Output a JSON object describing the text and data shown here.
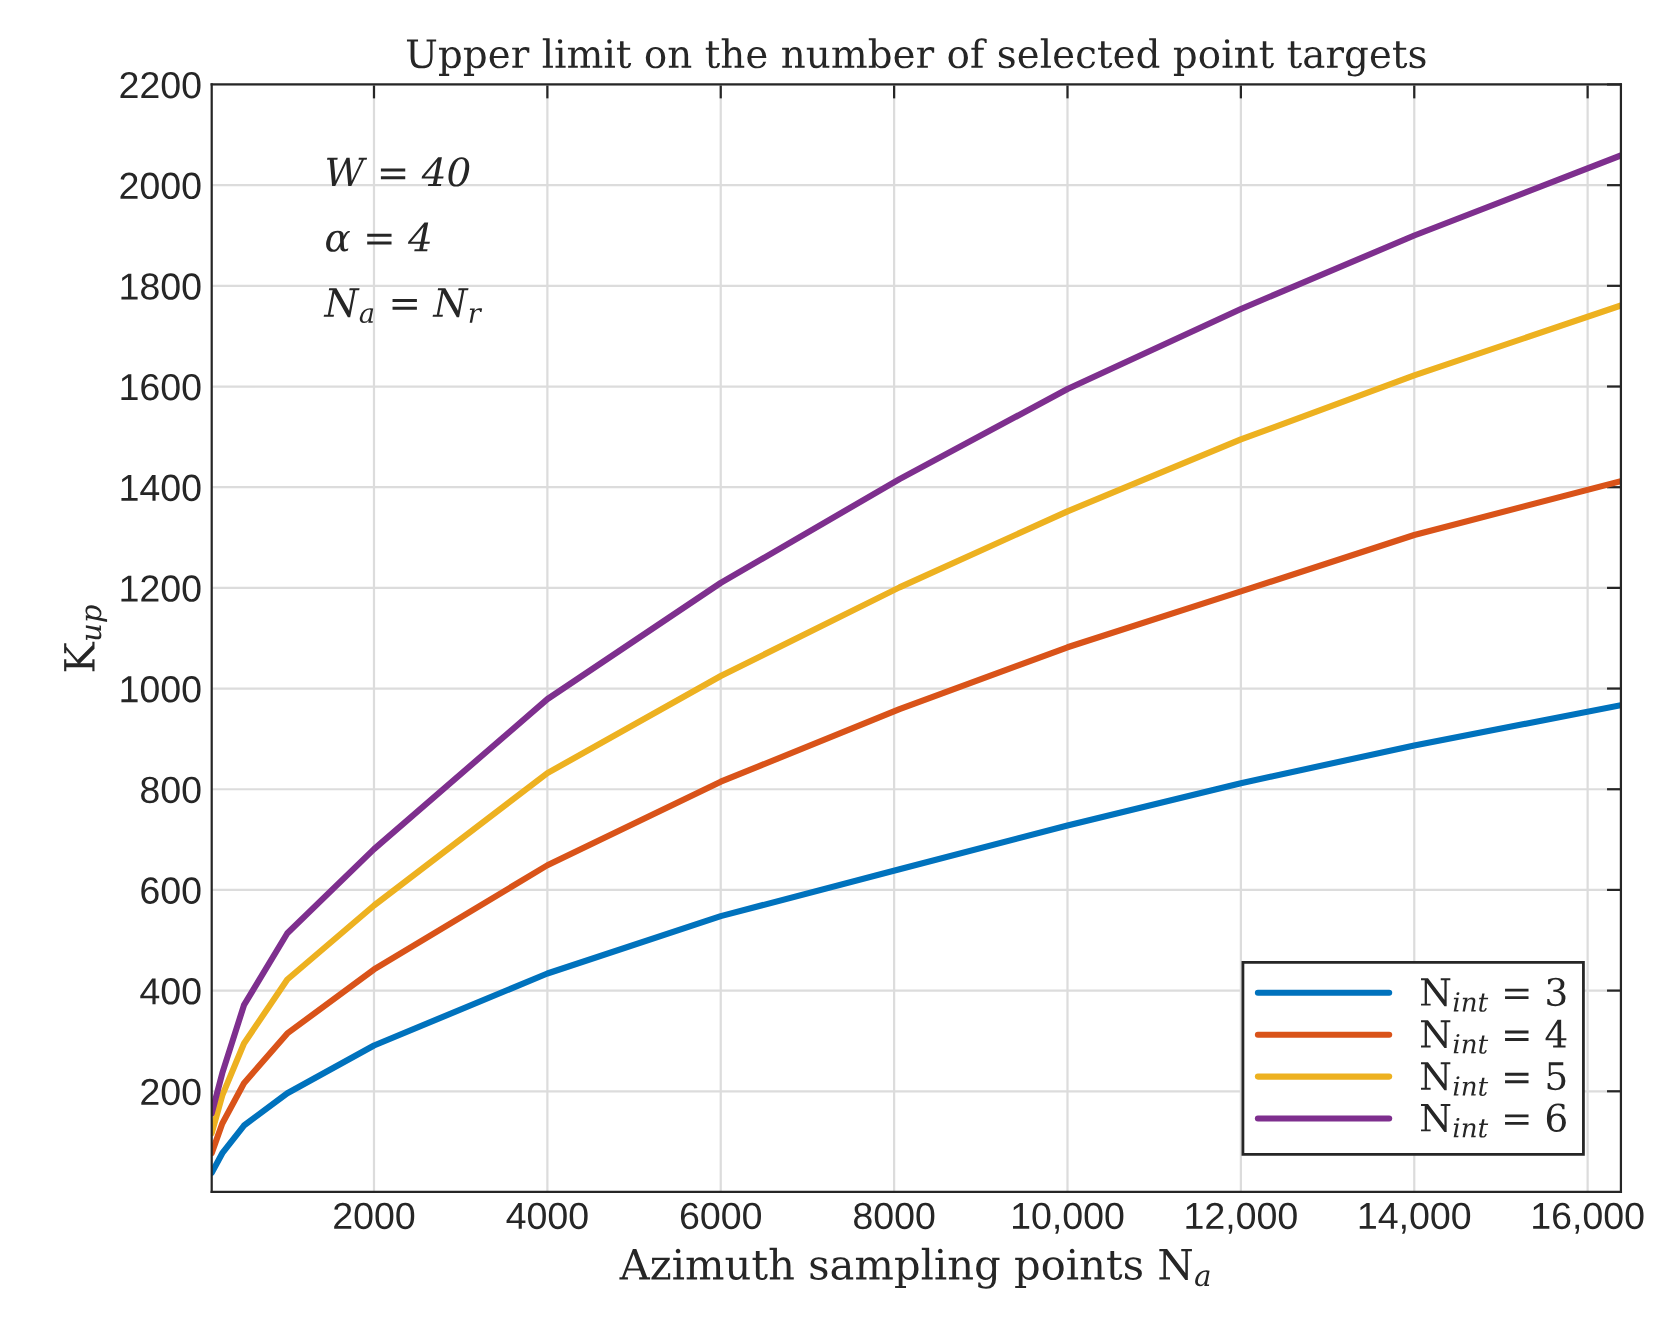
{
  "chart_data": {
    "type": "line",
    "title": "Upper limit on the number of selected point targets",
    "xlabel": "Azimuth sampling points N$_{a}$",
    "ylabel": "K$_{up}$",
    "annotations": [
      "W = 40",
      "α = 4",
      "N$_{a}$ = N$_{r}$"
    ],
    "x": [
      128,
      250,
      500,
      1000,
      2000,
      4000,
      6000,
      8062,
      10000,
      12000,
      14000,
      16384
    ],
    "series": [
      {
        "name": "N$_{int}$ = 3",
        "color": "#0072bd",
        "values": [
          38,
          77,
          132,
          196,
          291,
          434,
          548,
          641,
          728,
          812,
          887,
          967
        ]
      },
      {
        "name": "N$_{int}$ = 4",
        "color": "#d95319",
        "values": [
          77,
          136,
          216,
          315,
          442,
          649,
          815,
          959,
          1082,
          1193,
          1305,
          1412
        ]
      },
      {
        "name": "N$_{int}$ = 5",
        "color": "#edb120",
        "values": [
          117,
          192,
          295,
          422,
          569,
          832,
          1025,
          1201,
          1352,
          1495,
          1622,
          1761
        ]
      },
      {
        "name": "N$_{int}$ = 6",
        "color": "#7e2f8e",
        "values": [
          156,
          236,
          371,
          514,
          681,
          979,
          1210,
          1416,
          1595,
          1754,
          1900,
          2059
        ]
      }
    ],
    "xlim": [
      128,
      16384
    ],
    "ylim": [
      0,
      2200
    ],
    "xticks": [
      2000,
      4000,
      6000,
      8000,
      {
        "value": 10000,
        "label": "10,000"
      },
      {
        "value": 12000,
        "label": "12,000"
      },
      {
        "value": 14000,
        "label": "14,000"
      },
      {
        "value": 16000,
        "label": "16,000"
      }
    ],
    "yticks": [
      200,
      400,
      600,
      800,
      1000,
      1200,
      1400,
      1600,
      1800,
      2000,
      2200
    ],
    "grid": true,
    "legend": "lower right",
    "marker": "none",
    "line_style": "solid"
  }
}
